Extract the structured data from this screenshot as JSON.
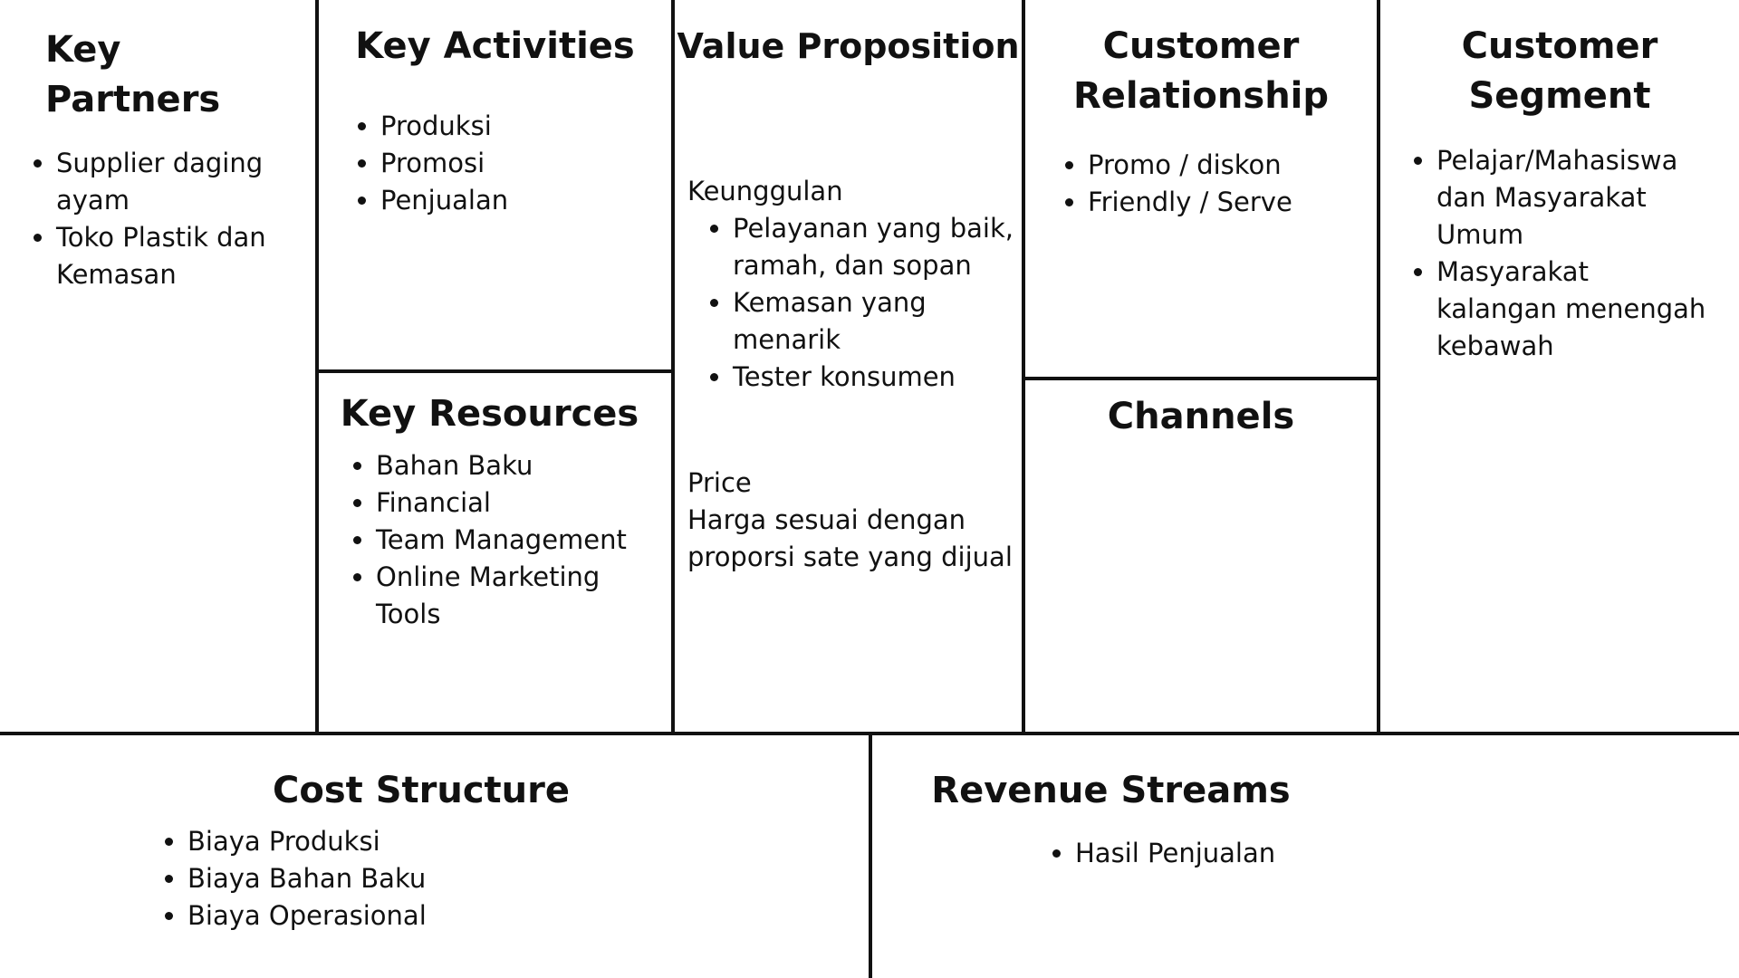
{
  "canvas": {
    "key_partners": {
      "title": "Key Partners",
      "items": [
        "Supplier daging ayam",
        "Toko Plastik dan Kemasan"
      ]
    },
    "key_activities": {
      "title": "Key Activities",
      "items": [
        "Produksi",
        "Promosi",
        "Penjualan"
      ]
    },
    "key_resources": {
      "title": "Key Resources",
      "items": [
        "Bahan Baku",
        "Financial",
        "Team Management",
        "Online Marketing Tools"
      ]
    },
    "value_proposition": {
      "title": "Value Proposition",
      "subheading": "Keunggulan",
      "items": [
        "Pelayanan yang baik, ramah, dan sopan",
        "Kemasan yang menarik",
        "Tester konsumen"
      ],
      "price_label": "Price",
      "price_text": "Harga sesuai dengan proporsi sate yang dijual"
    },
    "customer_relationship": {
      "title": "Customer Relationship",
      "items": [
        "Promo / diskon",
        "Friendly / Serve"
      ]
    },
    "channels": {
      "title": "Channels"
    },
    "customer_segment": {
      "title": "Customer Segment",
      "items": [
        "Pelajar/Mahasiswa dan Masyarakat Umum",
        "Masyarakat kalangan menengah kebawah"
      ]
    },
    "cost_structure": {
      "title": "Cost Structure",
      "items": [
        "Biaya Produksi",
        "Biaya Bahan Baku",
        "Biaya Operasional"
      ]
    },
    "revenue_streams": {
      "title": "Revenue Streams",
      "items": [
        "Hasil Penjualan"
      ]
    }
  }
}
